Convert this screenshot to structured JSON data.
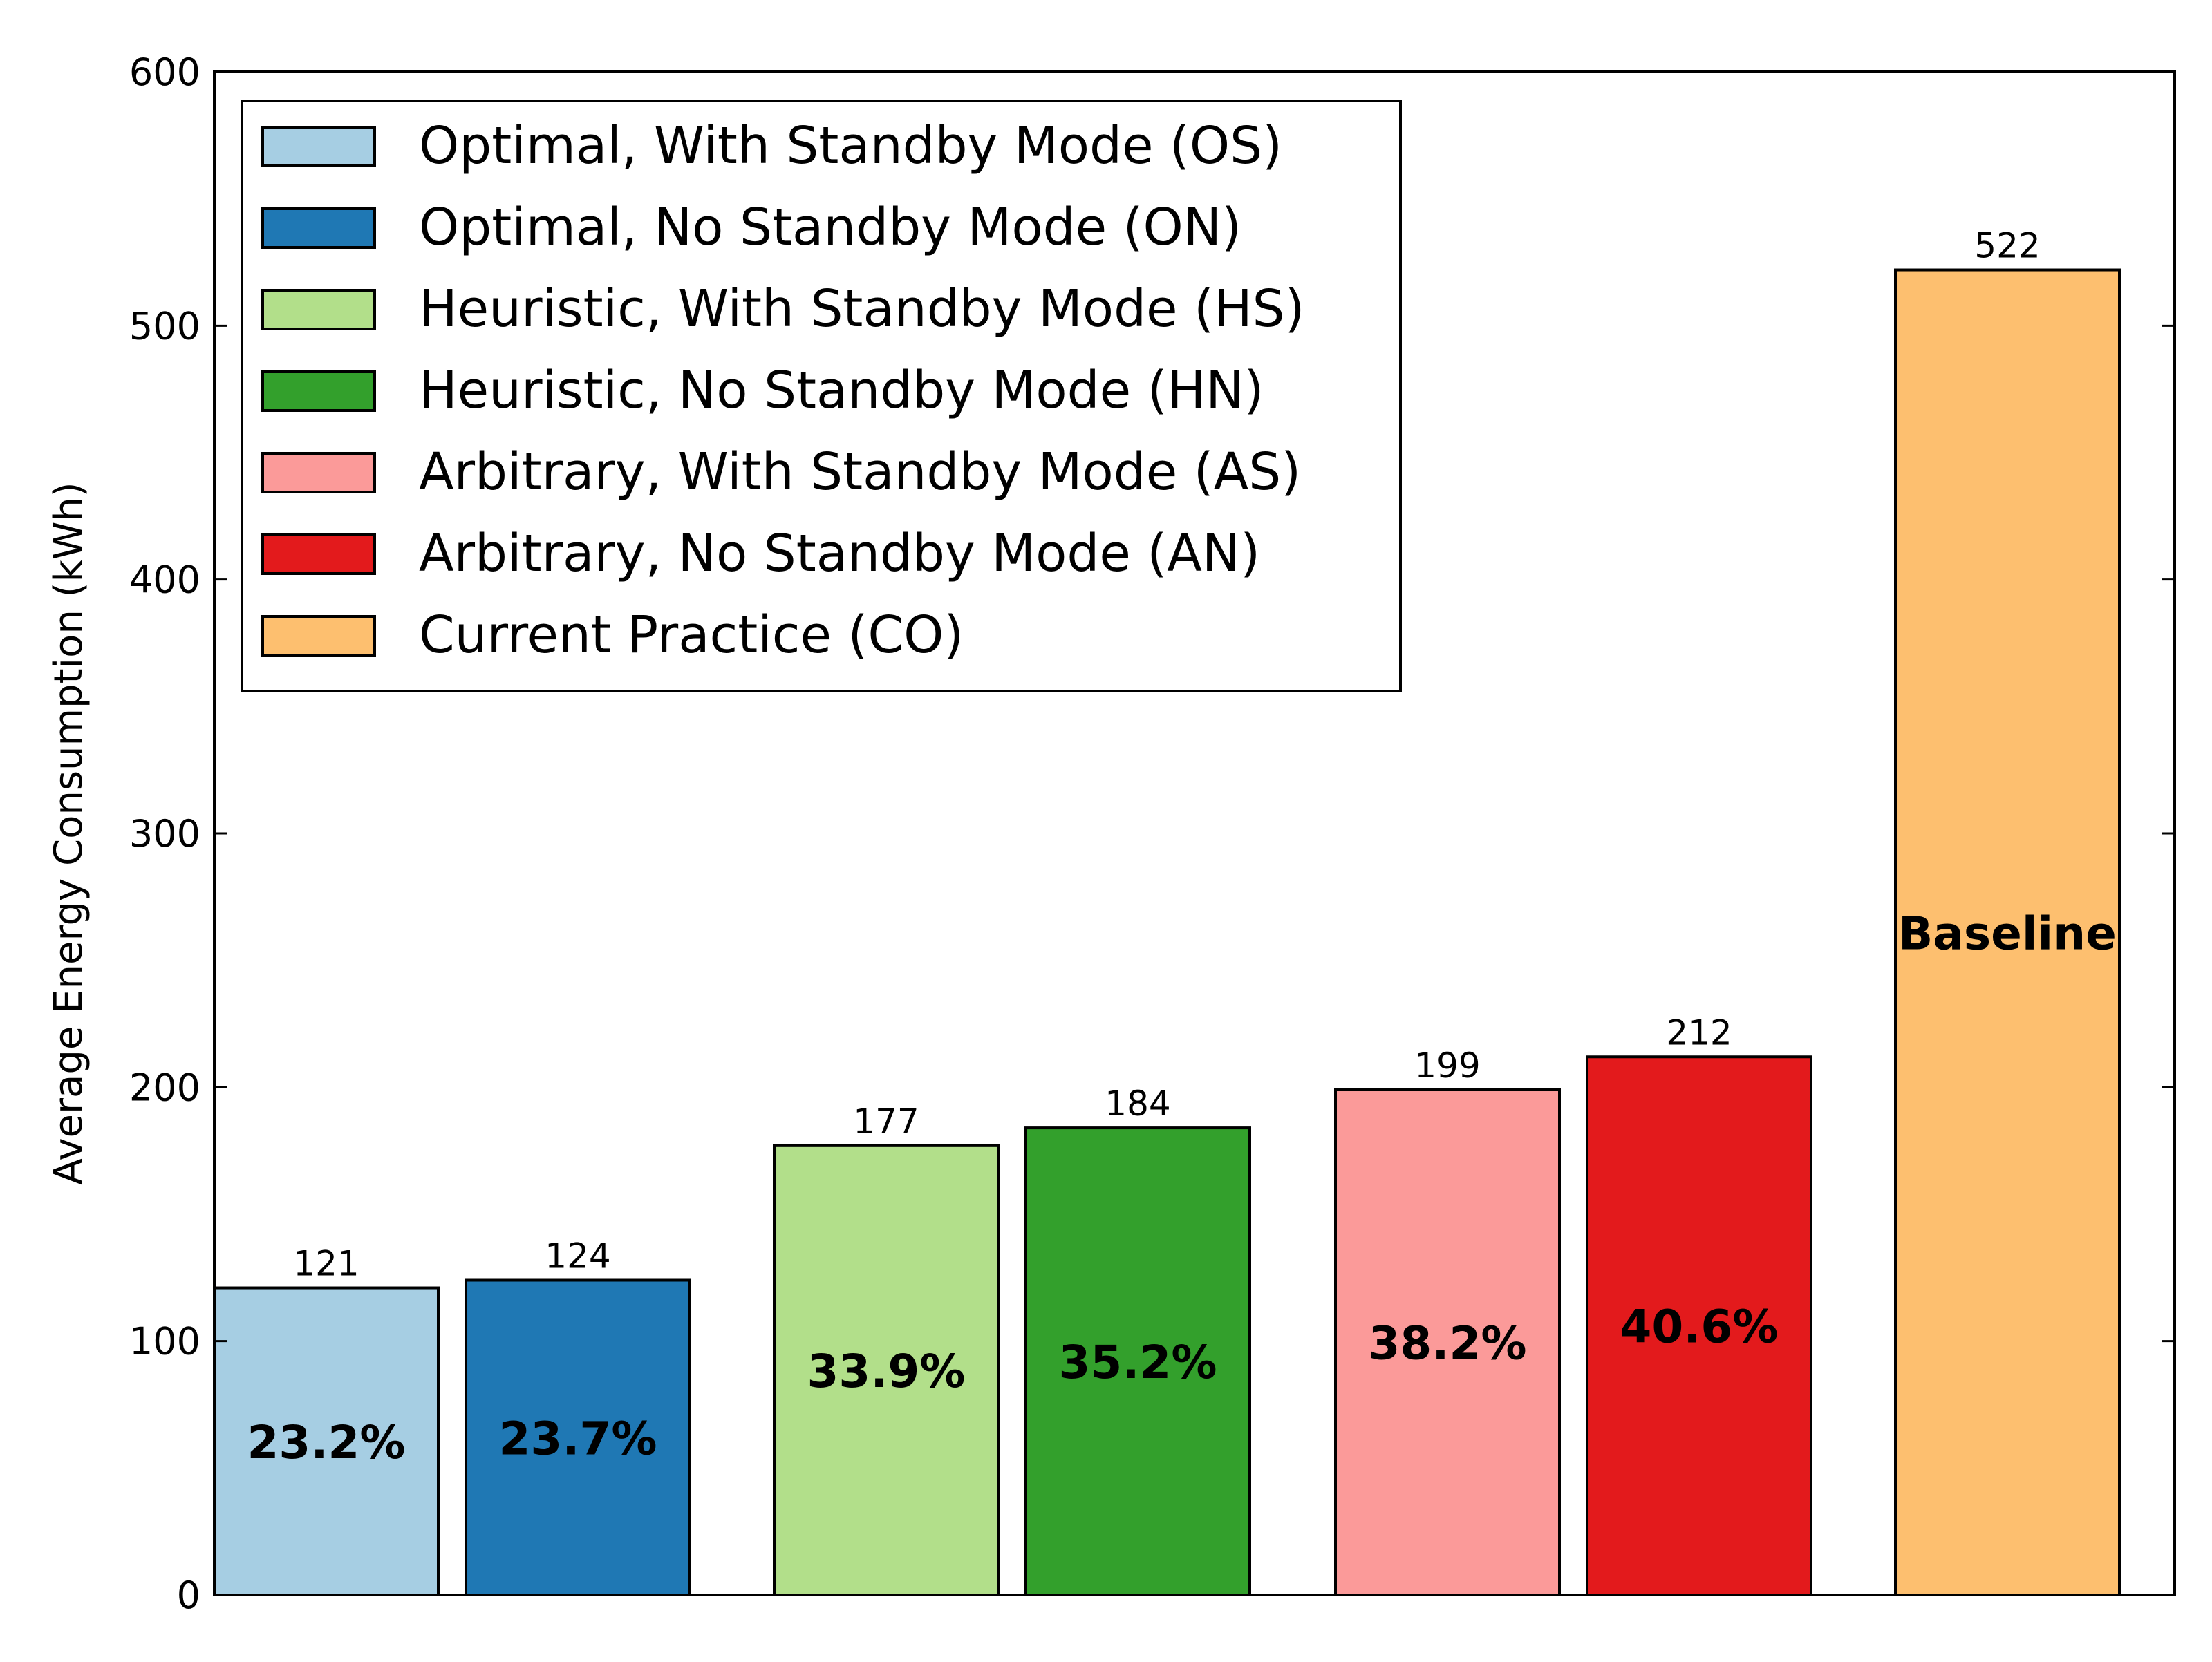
{
  "chart_data": {
    "type": "bar",
    "title": "",
    "xlabel": "",
    "ylabel": "Average Energy Consumption (kWh)",
    "ylim": [
      0,
      600
    ],
    "yticks": [
      0,
      100,
      200,
      300,
      400,
      500,
      600
    ],
    "grid": false,
    "legend_position": "top-left",
    "series": [
      {
        "name": "Optimal, With Standby Mode (OS)",
        "value": 121,
        "value_label": "121",
        "inner_label": "23.2%",
        "color": "#a6cee3"
      },
      {
        "name": "Optimal, No Standby Mode (ON)",
        "value": 124,
        "value_label": "124",
        "inner_label": "23.7%",
        "color": "#1f78b4"
      },
      {
        "name": "Heuristic, With Standby Mode (HS)",
        "value": 177,
        "value_label": "177",
        "inner_label": "33.9%",
        "color": "#b2df8a"
      },
      {
        "name": "Heuristic, No Standby Mode (HN)",
        "value": 184,
        "value_label": "184",
        "inner_label": "35.2%",
        "color": "#33a02c"
      },
      {
        "name": "Arbitrary, With Standby Mode (AS)",
        "value": 199,
        "value_label": "199",
        "inner_label": "38.2%",
        "color": "#fb9a99"
      },
      {
        "name": "Arbitrary, No Standby Mode (AN)",
        "value": 212,
        "value_label": "212",
        "inner_label": "40.6%",
        "color": "#e31a1c"
      },
      {
        "name": "Current Practice (CO)",
        "value": 522,
        "value_label": "522",
        "inner_label": "Baseline",
        "color": "#fdbf6f"
      }
    ]
  }
}
